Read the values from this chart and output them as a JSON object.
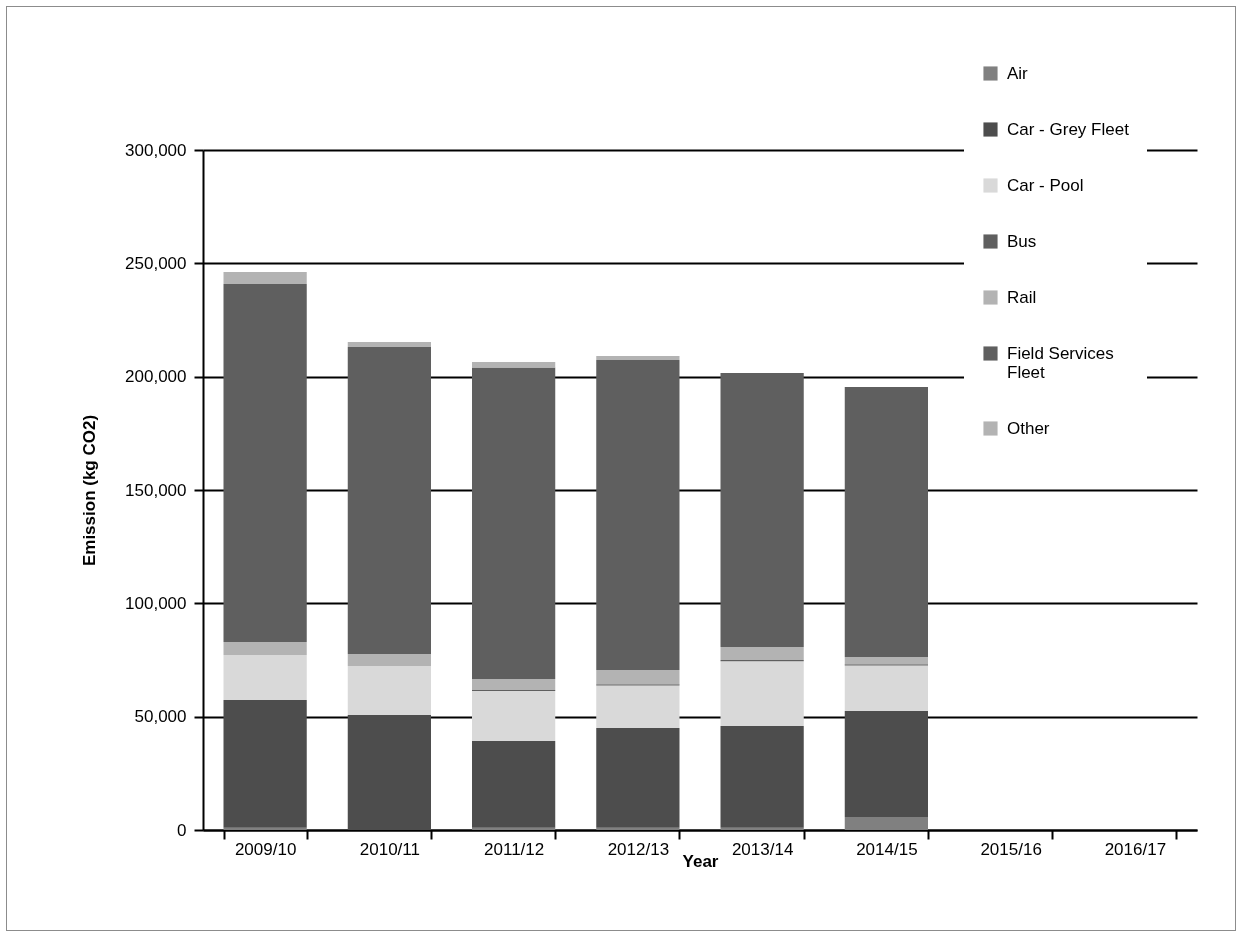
{
  "chart_data": {
    "type": "bar",
    "xlabel": "Year",
    "ylabel": "Emission (kg CO2)",
    "categories": [
      "2009/10",
      "2010/11",
      "2011/12",
      "2012/13",
      "2013/14",
      "2014/15",
      "2015/16",
      "2016/17"
    ],
    "series": [
      {
        "name": "Air",
        "color": "#808080",
        "values": [
          1000,
          0,
          1000,
          1000,
          1000,
          5700,
          null,
          null
        ]
      },
      {
        "name": "Car - Grey Fleet",
        "color": "#4d4d4d",
        "values": [
          56400,
          50700,
          38300,
          44000,
          44900,
          46800,
          null,
          null
        ]
      },
      {
        "name": "Car - Pool",
        "color": "#d9d9d9",
        "values": [
          19800,
          21700,
          22000,
          18800,
          28600,
          20100,
          null,
          null
        ]
      },
      {
        "name": "Bus",
        "color": "#5f5f5f",
        "values": [
          0,
          0,
          500,
          500,
          500,
          500,
          null,
          null
        ]
      },
      {
        "name": "Rail",
        "color": "#b3b3b3",
        "values": [
          5700,
          5300,
          4800,
          6300,
          5700,
          3200,
          null,
          null
        ]
      },
      {
        "name": "Field Services Fleet",
        "color": "#5f5f5f",
        "values": [
          158000,
          135400,
          137400,
          136800,
          120900,
          119100,
          null,
          null
        ]
      },
      {
        "name": "Other",
        "color": "#b3b3b3",
        "values": [
          5300,
          2200,
          2500,
          1700,
          0,
          0,
          null,
          null
        ]
      }
    ],
    "stacked": true,
    "ylim": [
      0,
      300000
    ],
    "yticks": [
      0,
      {
        "value": 50000,
        "label": "50,000"
      },
      {
        "value": 100000,
        "label": "100,000"
      },
      {
        "value": 150000,
        "label": "150,000"
      },
      {
        "value": 200000,
        "label": "200,000"
      },
      {
        "value": 250000,
        "label": "250,000"
      },
      {
        "value": 300000,
        "label": "300,000"
      }
    ],
    "grid": "y",
    "legend": "top right"
  }
}
